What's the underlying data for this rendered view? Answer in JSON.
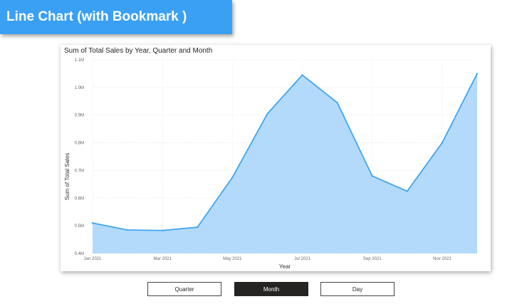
{
  "header": {
    "title": "Line Chart (with Bookmark )"
  },
  "buttons": [
    {
      "label": "Quarter",
      "active": false
    },
    {
      "label": "Month",
      "active": true
    },
    {
      "label": "Day",
      "active": false
    }
  ],
  "colors": {
    "banner": "#3aa0f3",
    "line": "#41a5ee",
    "area": "#b3dafb"
  },
  "chart_data": {
    "type": "area",
    "title": "Sum of Total Sales by Year, Quarter and Month",
    "xlabel": "Year",
    "ylabel": "Sum of Total Sales",
    "x": [
      "Jan 2021",
      "Feb 2021",
      "Mar 2021",
      "Apr 2021",
      "May 2021",
      "Jun 2021",
      "Jul 2021",
      "Aug 2021",
      "Sep 2021",
      "Oct 2021",
      "Nov 2021",
      "Dec 2021"
    ],
    "x_tick_labels": [
      "Jan 2021",
      "Mar 2021",
      "May 2021",
      "Jul 2021",
      "Sep 2021",
      "Nov 2021"
    ],
    "values": [
      0.51,
      0.485,
      0.483,
      0.495,
      0.675,
      0.905,
      1.045,
      0.945,
      0.68,
      0.625,
      0.8,
      1.05
    ],
    "y_ticks": [
      "0.4M",
      "0.5M",
      "0.6M",
      "0.7M",
      "0.8M",
      "0.9M",
      "1.0M",
      "1.1M"
    ],
    "y_tick_values": [
      0.4,
      0.5,
      0.6,
      0.7,
      0.8,
      0.9,
      1.0,
      1.1
    ],
    "ylim": [
      0.4,
      1.1
    ],
    "grid": true,
    "legend": "none"
  }
}
